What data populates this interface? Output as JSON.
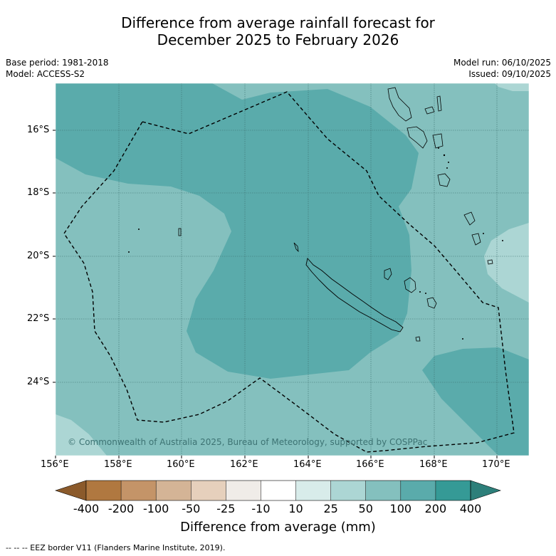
{
  "title_line1": "Difference from average rainfall forecast for",
  "title_line2": "December 2025 to February 2026",
  "base_period": "Base period: 1981-2018",
  "model": "Model: ACCESS-S2",
  "model_run": "Model run: 06/10/2025",
  "issued": "Issued: 09/10/2025",
  "copyright": "© Commonwealth of Australia 2025, Bureau of Meteorology, supported by COSPPac",
  "lat_labels": [
    "16°S",
    "18°S",
    "20°S",
    "22°S",
    "24°S"
  ],
  "lon_labels": [
    "156°E",
    "158°E",
    "160°E",
    "162°E",
    "164°E",
    "166°E",
    "168°E",
    "170°E"
  ],
  "colorbar": {
    "ticks": [
      "-400",
      "-200",
      "-100",
      "-50",
      "-25",
      "-10",
      "10",
      "25",
      "50",
      "100",
      "200",
      "400"
    ],
    "colors": [
      "#8b5a2b",
      "#b07840",
      "#c49468",
      "#d4b496",
      "#e6d0bc",
      "#f0ece8",
      "#ffffff",
      "#d8ecea",
      "#acd6d4",
      "#84c0be",
      "#5aabab",
      "#359a96",
      "#2d7f7a"
    ],
    "title": "Difference from average (mm)"
  },
  "footer": "--  --  -- EEZ border V11 (Flanders Marine Institute, 2019)."
}
